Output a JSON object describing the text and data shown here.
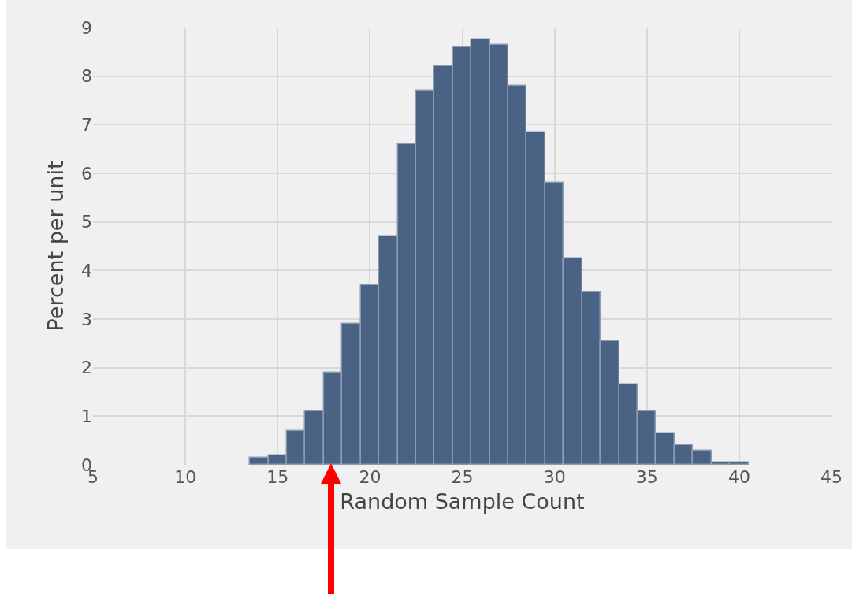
{
  "chart_data": {
    "type": "histogram",
    "xlabel": "Random Sample Count",
    "ylabel": "Percent per unit",
    "bins": [
      13.5,
      14.5,
      15.5,
      16.5,
      17.5,
      18.5,
      19.5,
      20.5,
      21.5,
      22.5,
      23.5,
      24.5,
      25.5,
      26.5,
      27.5,
      28.5,
      29.5,
      30.5,
      31.5,
      32.5,
      33.5,
      34.5,
      35.5,
      36.5,
      37.5,
      38.5,
      39.5,
      40.5
    ],
    "values": [
      0.15,
      0.2,
      0.7,
      1.1,
      1.9,
      2.9,
      3.7,
      4.7,
      6.6,
      7.7,
      8.2,
      8.6,
      8.75,
      8.65,
      7.8,
      6.85,
      5.8,
      4.25,
      3.55,
      2.55,
      1.65,
      1.1,
      0.65,
      0.4,
      0.3,
      0.05,
      0.05
    ],
    "color": "#4a6283",
    "xlim": [
      5,
      45
    ],
    "xticks": [
      5,
      10,
      15,
      20,
      25,
      30,
      35,
      40,
      45
    ],
    "ylim": [
      0,
      9
    ],
    "yticks": [
      0,
      1,
      2,
      3,
      4,
      5,
      6,
      7,
      8,
      9
    ],
    "grid": true
  }
}
